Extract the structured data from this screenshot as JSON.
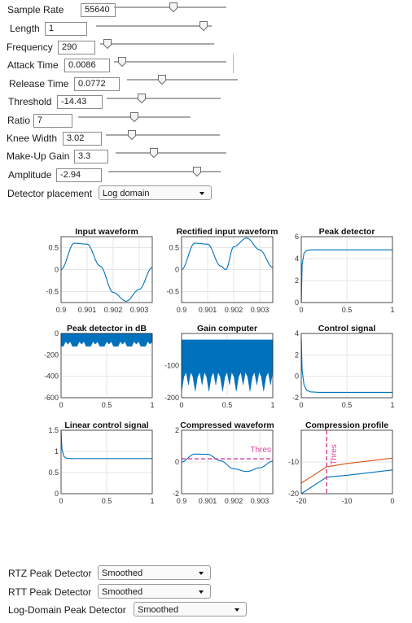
{
  "controls": [
    {
      "label": "Sample Rate",
      "value": "55640",
      "fraction": 0.53
    },
    {
      "label": "Length",
      "value": "1",
      "fraction": 0.97
    },
    {
      "label": "Frequency",
      "value": "290",
      "fraction": 0.02
    },
    {
      "label": "Attack Time",
      "value": "0.0086",
      "fraction": 0.03
    },
    {
      "label": "Release Time",
      "value": "0.0772",
      "fraction": 0.3
    },
    {
      "label": "Threshold",
      "value": "-14.43",
      "fraction": 0.29
    },
    {
      "label": "Ratio",
      "value": "7",
      "fraction": 0.5
    },
    {
      "label": "Knee Width",
      "value": "3.02",
      "fraction": 0.2
    },
    {
      "label": "Make-Up Gain",
      "value": "3.3",
      "fraction": 0.33
    },
    {
      "label": "Amplitude",
      "value": "-2.94",
      "fraction": 0.82
    }
  ],
  "detector": {
    "label": "Detector placement",
    "value": "Log domain"
  },
  "bottom": [
    {
      "label": "RTZ Peak Detector",
      "value": "Smoothed"
    },
    {
      "label": "RTT Peak Detector",
      "value": "Smoothed"
    },
    {
      "label": "Log-Domain Peak Detector",
      "value": "Smoothed"
    }
  ],
  "colors": {
    "blue": "#0072bd",
    "orange": "#d95319",
    "magenta": "#d8479e"
  },
  "chart_data": [
    {
      "title": "Input waveform",
      "type": "line",
      "xlim": [
        0.9,
        0.9035
      ],
      "ylim": [
        -0.75,
        0.75
      ],
      "xticks": [
        "0.9",
        "0.901",
        "0.902",
        "0.903"
      ],
      "yticks": [
        "0.5",
        "0",
        "-0.5"
      ],
      "series": [
        {
          "x": [
            0.9,
            0.9005,
            0.901,
            0.9015,
            0.902,
            0.9025,
            0.903,
            0.9035
          ],
          "y": [
            0.0,
            0.6,
            0.58,
            0.08,
            -0.52,
            -0.72,
            -0.45,
            0.05
          ]
        }
      ]
    },
    {
      "title": "Rectified input waveform",
      "type": "line",
      "xlim": [
        0.9,
        0.9035
      ],
      "ylim": [
        -0.75,
        0.75
      ],
      "xticks": [
        "0.9",
        "0.901",
        "0.902",
        "0.903"
      ],
      "yticks": [
        "0.5",
        "0",
        "-0.5"
      ],
      "series": [
        {
          "x": [
            0.9,
            0.9005,
            0.901,
            0.9015,
            0.9017,
            0.902,
            0.9025,
            0.903,
            0.9035
          ],
          "y": [
            0.0,
            0.6,
            0.58,
            0.08,
            0.0,
            0.52,
            0.72,
            0.45,
            0.05
          ]
        }
      ]
    },
    {
      "title": "Peak detector",
      "type": "line",
      "xlim": [
        0,
        1
      ],
      "ylim": [
        0,
        6
      ],
      "xticks": [
        "0",
        "0.5",
        "1"
      ],
      "yticks": [
        "6",
        "4",
        "2",
        "0"
      ],
      "series": [
        {
          "x": [
            0,
            0.01,
            0.03,
            0.06,
            0.1,
            0.2,
            1
          ],
          "y": [
            0,
            3.5,
            4.5,
            4.75,
            4.8,
            4.8,
            4.8
          ]
        }
      ]
    },
    {
      "title": "Peak detector in dB",
      "type": "area",
      "xlim": [
        0,
        1
      ],
      "ylim": [
        -600,
        0
      ],
      "xticks": [
        "0",
        "0.5",
        "1"
      ],
      "yticks": [
        "0",
        "-200",
        "-400",
        "-600"
      ],
      "series": [
        {
          "top": 0,
          "base": -75,
          "spikes": -120
        }
      ]
    },
    {
      "title": "Gain computer",
      "type": "area",
      "xlim": [
        0,
        1
      ],
      "ylim": [
        -200,
        0
      ],
      "xticks": [
        "0",
        "0.5",
        "1"
      ],
      "yticks": [
        "-100",
        "-200"
      ],
      "series": [
        {
          "top": -20,
          "base": -120,
          "spikes": -180
        }
      ]
    },
    {
      "title": "Control signal",
      "type": "line",
      "xlim": [
        0,
        1
      ],
      "ylim": [
        -2,
        4
      ],
      "xticks": [
        "0",
        "0.5",
        "1"
      ],
      "yticks": [
        "4",
        "2",
        "0",
        "-2"
      ],
      "series": [
        {
          "x": [
            0,
            0.01,
            0.03,
            0.06,
            0.1,
            0.2,
            1
          ],
          "y": [
            3.5,
            0.5,
            -0.8,
            -1.3,
            -1.45,
            -1.5,
            -1.5
          ]
        }
      ]
    },
    {
      "title": "Linear control signal",
      "type": "line",
      "xlim": [
        0,
        1
      ],
      "ylim": [
        0,
        1.5
      ],
      "xticks": [
        "0",
        "0.5",
        "1"
      ],
      "yticks": [
        "1.5",
        "1",
        "0.5",
        "0"
      ],
      "series": [
        {
          "x": [
            0,
            0.01,
            0.03,
            0.06,
            0.1,
            0.2,
            1
          ],
          "y": [
            1.5,
            1.05,
            0.88,
            0.84,
            0.83,
            0.83,
            0.83
          ]
        }
      ]
    },
    {
      "title": "Compressed waveform",
      "type": "line",
      "xlim": [
        0.9,
        0.9035
      ],
      "ylim": [
        -2,
        2
      ],
      "xticks": [
        "0.9",
        "0.901",
        "0.902",
        "0.903"
      ],
      "yticks": [
        "2",
        "0",
        "-2"
      ],
      "threshold": {
        "value": 0.2,
        "label": "Thres"
      },
      "series": [
        {
          "x": [
            0.9,
            0.9005,
            0.901,
            0.9015,
            0.902,
            0.9025,
            0.903,
            0.9035
          ],
          "y": [
            0.0,
            0.5,
            0.48,
            0.07,
            -0.43,
            -0.6,
            -0.37,
            0.05
          ]
        }
      ]
    },
    {
      "title": "Compression profile",
      "type": "line",
      "xlim": [
        -20,
        0
      ],
      "ylim": [
        -20,
        0
      ],
      "xticks": [
        "-20",
        "-10",
        "0"
      ],
      "yticks": [
        "-10",
        "-20"
      ],
      "threshold": {
        "value": -14.43,
        "label": "Thres",
        "vertical": true
      },
      "series": [
        {
          "x": [
            -20,
            -14.43,
            -10,
            0
          ],
          "y": [
            -16.7,
            -11.5,
            -10.5,
            -8.8
          ]
        },
        {
          "x": [
            -20,
            -14.43,
            -10,
            0
          ],
          "y": [
            -20,
            -14.8,
            -14.2,
            -12.5
          ]
        }
      ]
    }
  ]
}
